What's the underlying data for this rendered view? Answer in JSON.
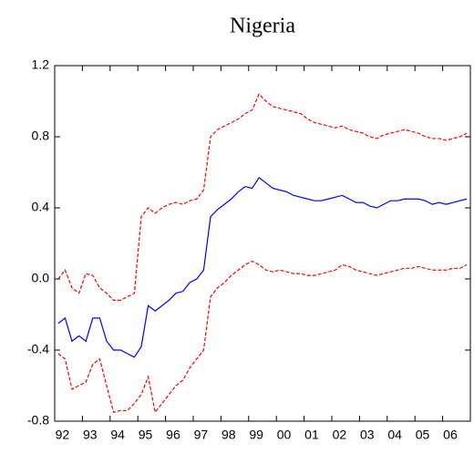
{
  "chart_data": {
    "type": "line",
    "title": "Nigeria",
    "categories": [
      "92",
      null,
      null,
      null,
      "93",
      null,
      null,
      null,
      "94",
      null,
      null,
      null,
      "95",
      null,
      null,
      null,
      "96",
      null,
      null,
      null,
      "97",
      null,
      null,
      null,
      "98",
      null,
      null,
      null,
      "99",
      null,
      null,
      null,
      "00",
      null,
      null,
      null,
      "01",
      null,
      null,
      null,
      "02",
      null,
      null,
      null,
      "03",
      null,
      null,
      null,
      "04",
      null,
      null,
      null,
      "05",
      null,
      null,
      null,
      "06",
      null,
      null,
      null
    ],
    "series": [
      {
        "color": "#0000ff",
        "dashed": false,
        "values": [
          -0.25,
          -0.22,
          -0.35,
          -0.32,
          -0.35,
          -0.22,
          -0.22,
          -0.35,
          -0.4,
          -0.4,
          -0.42,
          -0.44,
          -0.38,
          -0.15,
          -0.18,
          -0.15,
          -0.12,
          -0.08,
          -0.07,
          -0.02,
          0.0,
          0.05,
          0.35,
          0.39,
          0.42,
          0.45,
          0.49,
          0.52,
          0.51,
          0.57,
          0.54,
          0.51,
          0.5,
          0.49,
          0.47,
          0.46,
          0.45,
          0.44,
          0.44,
          0.45,
          0.46,
          0.47,
          0.45,
          0.43,
          0.43,
          0.41,
          0.4,
          0.42,
          0.44,
          0.44,
          0.45,
          0.45,
          0.45,
          0.44,
          0.42,
          0.43,
          0.42,
          0.43,
          0.44,
          0.45
        ]
      },
      {
        "color": "#ff0000",
        "dashed": true,
        "values": [
          0.0,
          0.05,
          -0.05,
          -0.08,
          0.03,
          0.02,
          -0.05,
          -0.08,
          -0.12,
          -0.12,
          -0.1,
          -0.08,
          0.35,
          0.4,
          0.37,
          0.4,
          0.42,
          0.43,
          0.42,
          0.44,
          0.45,
          0.5,
          0.8,
          0.84,
          0.86,
          0.88,
          0.9,
          0.93,
          0.95,
          1.04,
          1.0,
          0.97,
          0.96,
          0.95,
          0.94,
          0.93,
          0.9,
          0.88,
          0.87,
          0.86,
          0.85,
          0.86,
          0.84,
          0.83,
          0.82,
          0.8,
          0.79,
          0.81,
          0.82,
          0.83,
          0.84,
          0.83,
          0.82,
          0.8,
          0.79,
          0.79,
          0.78,
          0.79,
          0.8,
          0.82
        ]
      },
      {
        "color": "#ff0000",
        "dashed": true,
        "values": [
          -0.42,
          -0.45,
          -0.62,
          -0.6,
          -0.58,
          -0.48,
          -0.45,
          -0.6,
          -0.75,
          -0.74,
          -0.74,
          -0.7,
          -0.65,
          -0.55,
          -0.75,
          -0.7,
          -0.65,
          -0.6,
          -0.57,
          -0.5,
          -0.45,
          -0.4,
          -0.1,
          -0.05,
          -0.02,
          0.02,
          0.05,
          0.08,
          0.1,
          0.08,
          0.05,
          0.04,
          0.05,
          0.04,
          0.03,
          0.03,
          0.02,
          0.02,
          0.03,
          0.04,
          0.05,
          0.08,
          0.07,
          0.05,
          0.04,
          0.03,
          0.02,
          0.03,
          0.04,
          0.05,
          0.06,
          0.06,
          0.07,
          0.06,
          0.05,
          0.05,
          0.05,
          0.06,
          0.06,
          0.08
        ]
      }
    ],
    "ylim": [
      -0.8,
      1.2
    ],
    "yticks": [
      -0.8,
      -0.4,
      {
        "value": 0.0,
        "label": "0.0"
      },
      0.4,
      0.8,
      1.2
    ],
    "grid": false
  }
}
